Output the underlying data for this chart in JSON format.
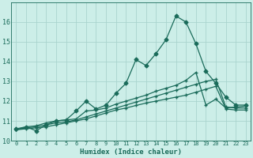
{
  "title": "",
  "xlabel": "Humidex (Indice chaleur)",
  "ylabel": "",
  "background_color": "#cceee8",
  "grid_color": "#aad4ce",
  "line_color": "#1a6b5a",
  "xlim": [
    -0.5,
    23.5
  ],
  "ylim": [
    10,
    17
  ],
  "yticks": [
    10,
    11,
    12,
    13,
    14,
    15,
    16
  ],
  "xticks": [
    0,
    1,
    2,
    3,
    4,
    5,
    6,
    7,
    8,
    9,
    10,
    11,
    12,
    13,
    14,
    15,
    16,
    17,
    18,
    19,
    20,
    21,
    22,
    23
  ],
  "series1_y": [
    10.6,
    10.7,
    10.5,
    10.8,
    11.0,
    11.05,
    11.5,
    12.0,
    11.6,
    11.8,
    12.4,
    12.9,
    14.1,
    13.8,
    14.4,
    15.1,
    16.3,
    16.0,
    14.9,
    13.5,
    12.9,
    12.2,
    11.8,
    11.8
  ],
  "series2_y": [
    10.55,
    10.7,
    10.75,
    10.9,
    11.0,
    11.05,
    11.1,
    11.5,
    11.55,
    11.65,
    11.85,
    12.0,
    12.15,
    12.3,
    12.5,
    12.65,
    12.8,
    13.05,
    13.45,
    11.8,
    12.1,
    11.65,
    11.7,
    11.75
  ],
  "series3_y": [
    10.55,
    10.65,
    10.7,
    10.8,
    10.9,
    10.95,
    11.05,
    11.2,
    11.35,
    11.5,
    11.65,
    11.8,
    11.95,
    12.1,
    12.25,
    12.4,
    12.55,
    12.7,
    12.85,
    13.0,
    13.1,
    11.7,
    11.65,
    11.65
  ],
  "series4_y": [
    10.55,
    10.6,
    10.65,
    10.7,
    10.8,
    10.9,
    11.0,
    11.1,
    11.25,
    11.4,
    11.55,
    11.65,
    11.78,
    11.9,
    12.0,
    12.1,
    12.2,
    12.3,
    12.45,
    12.6,
    12.75,
    11.6,
    11.55,
    11.55
  ],
  "markersize": 2.5,
  "linewidth": 0.9
}
